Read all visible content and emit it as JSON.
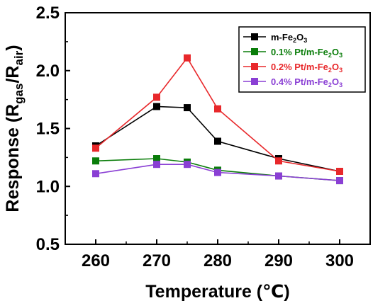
{
  "chart_data": {
    "type": "line",
    "title": "",
    "xlabel": "Temperature (℃)",
    "ylabel_parts": [
      "Response (R",
      "gas",
      "/R",
      "air",
      ")"
    ],
    "x": [
      260,
      270,
      275,
      280,
      290,
      300
    ],
    "xticks": [
      260,
      270,
      280,
      290,
      300
    ],
    "xtick_labels": [
      "260",
      "270",
      "280",
      "290",
      "300"
    ],
    "xlim": [
      255,
      305
    ],
    "yticks": [
      0.5,
      1.0,
      1.5,
      2.0,
      2.5
    ],
    "ytick_labels": [
      "0.5",
      "1.0",
      "1.5",
      "2.0",
      "2.5"
    ],
    "ylim": [
      0.5,
      2.5
    ],
    "grid": false,
    "legend_position": "top-right",
    "series": [
      {
        "name_parts": [
          "m-Fe",
          "2",
          "O",
          "3"
        ],
        "color": "#000000",
        "values": [
          1.35,
          1.69,
          1.68,
          1.39,
          1.24,
          1.13
        ]
      },
      {
        "name_parts": [
          "0.1% Pt/m-Fe",
          "2",
          "O",
          "3"
        ],
        "color": "#0a7d0a",
        "values": [
          1.22,
          1.24,
          1.21,
          1.14,
          1.09,
          1.05
        ]
      },
      {
        "name_parts": [
          "0.2% Pt/m-Fe",
          "2",
          "O",
          "3"
        ],
        "color": "#e8282b",
        "values": [
          1.33,
          1.77,
          2.11,
          1.67,
          1.22,
          1.13
        ]
      },
      {
        "name_parts": [
          "0.4% Pt/m-Fe",
          "2",
          "O",
          "3"
        ],
        "color": "#8a3fd4",
        "values": [
          1.11,
          1.19,
          1.19,
          1.12,
          1.09,
          1.05
        ]
      }
    ]
  }
}
